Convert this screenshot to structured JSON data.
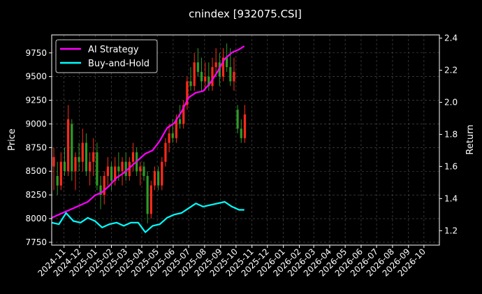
{
  "chart_data": {
    "type": "line",
    "title": "cnindex [932075.CSI]",
    "xlabel": "",
    "ylabel": "Price",
    "ylabel_right": "Return",
    "x_ticks": [
      "2024-11",
      "2024-12",
      "2025-01",
      "2025-02",
      "2025-03",
      "2025-04",
      "2025-05",
      "2025-06",
      "2025-07",
      "2025-08",
      "2025-09",
      "2025-10",
      "2025-11",
      "2025-12",
      "2026-01",
      "2026-02",
      "2026-03",
      "2026-04",
      "2026-05",
      "2026-06",
      "2026-07",
      "2026-08",
      "2026-09",
      "2026-10"
    ],
    "x_range": [
      "2024-10-08",
      "2026-10-31"
    ],
    "y_left": {
      "range": [
        7720,
        9940
      ],
      "ticks": [
        7750,
        8000,
        8250,
        8500,
        8750,
        9000,
        9250,
        9500,
        9750
      ]
    },
    "y_right": {
      "range": [
        1.11,
        2.42
      ],
      "ticks": [
        1.2,
        1.4,
        1.6,
        1.8,
        2.0,
        2.2,
        2.4
      ]
    },
    "grid": true,
    "legend_position": "top-left",
    "colors": {
      "up": "#ff2a1a",
      "down": "#2e9b26",
      "ai": "#ff00ff",
      "bh": "#00ffff"
    },
    "candles": {
      "description_note": "",
      "start_date": "2024-10-08",
      "series": [
        [
          "2024-10-08",
          8550,
          8750,
          8300,
          8650
        ],
        [
          "2024-10-15",
          8450,
          8600,
          8250,
          8350
        ],
        [
          "2024-10-22",
          8350,
          8700,
          8300,
          8600
        ],
        [
          "2024-10-29",
          8600,
          8750,
          8450,
          8500
        ],
        [
          "2024-11-05",
          8500,
          9200,
          8450,
          9050
        ],
        [
          "2024-11-12",
          9000,
          9050,
          8400,
          8500
        ],
        [
          "2024-11-19",
          8500,
          8700,
          8300,
          8650
        ],
        [
          "2024-11-26",
          8650,
          8800,
          8500,
          8600
        ],
        [
          "2024-12-03",
          8600,
          8950,
          8500,
          8800
        ],
        [
          "2024-12-10",
          8800,
          8900,
          8450,
          8500
        ],
        [
          "2024-12-17",
          8500,
          8700,
          8350,
          8600
        ],
        [
          "2024-12-24",
          8600,
          8850,
          8450,
          8700
        ],
        [
          "2024-12-31",
          8700,
          8800,
          8300,
          8350
        ],
        [
          "2025-01-07",
          8350,
          8450,
          8100,
          8250
        ],
        [
          "2025-01-14",
          8250,
          8500,
          8150,
          8450
        ],
        [
          "2025-01-21",
          8450,
          8650,
          8350,
          8550
        ],
        [
          "2025-01-28",
          8550,
          8600,
          8300,
          8400
        ],
        [
          "2025-02-04",
          8400,
          8650,
          8350,
          8550
        ],
        [
          "2025-02-11",
          8550,
          8700,
          8400,
          8500
        ],
        [
          "2025-02-18",
          8500,
          8650,
          8350,
          8600
        ],
        [
          "2025-02-25",
          8600,
          8700,
          8400,
          8450
        ],
        [
          "2025-03-04",
          8450,
          8650,
          8400,
          8600
        ],
        [
          "2025-03-11",
          8600,
          8800,
          8500,
          8700
        ],
        [
          "2025-03-18",
          8700,
          8750,
          8450,
          8500
        ],
        [
          "2025-03-25",
          8500,
          8600,
          8350,
          8550
        ],
        [
          "2025-04-01",
          8550,
          8600,
          8400,
          8450
        ],
        [
          "2025-04-08",
          8450,
          8500,
          7950,
          8050
        ],
        [
          "2025-04-15",
          8050,
          8400,
          8000,
          8350
        ],
        [
          "2025-04-22",
          8350,
          8550,
          8300,
          8500
        ],
        [
          "2025-04-29",
          8500,
          8550,
          8300,
          8350
        ],
        [
          "2025-05-06",
          8350,
          8650,
          8300,
          8600
        ],
        [
          "2025-05-13",
          8600,
          8850,
          8550,
          8800
        ],
        [
          "2025-05-20",
          8800,
          9000,
          8700,
          8900
        ],
        [
          "2025-05-27",
          8900,
          9050,
          8800,
          8850
        ],
        [
          "2025-06-03",
          8850,
          9100,
          8800,
          9050
        ],
        [
          "2025-06-10",
          9050,
          9200,
          8950,
          9000
        ],
        [
          "2025-06-17",
          9000,
          9250,
          8950,
          9200
        ],
        [
          "2025-06-24",
          9200,
          9500,
          9150,
          9450
        ],
        [
          "2025-07-01",
          9450,
          9600,
          9350,
          9400
        ],
        [
          "2025-07-08",
          9400,
          9750,
          9350,
          9650
        ],
        [
          "2025-07-15",
          9650,
          9800,
          9500,
          9550
        ],
        [
          "2025-07-22",
          9550,
          9700,
          9350,
          9450
        ],
        [
          "2025-07-29",
          9450,
          9650,
          9350,
          9500
        ],
        [
          "2025-08-05",
          9500,
          9650,
          9350,
          9400
        ],
        [
          "2025-08-12",
          9400,
          9700,
          9350,
          9600
        ],
        [
          "2025-08-19",
          9600,
          9800,
          9500,
          9650
        ],
        [
          "2025-08-26",
          9650,
          9750,
          9400,
          9500
        ],
        [
          "2025-09-02",
          9500,
          9800,
          9450,
          9700
        ],
        [
          "2025-09-09",
          9700,
          9850,
          9550,
          9600
        ],
        [
          "2025-09-16",
          9600,
          9800,
          9400,
          9450
        ],
        [
          "2025-09-23",
          9450,
          9700,
          9350,
          9550
        ],
        [
          "2025-09-30",
          9150,
          9200,
          8900,
          8950
        ],
        [
          "2025-10-07",
          8950,
          9050,
          8800,
          8850
        ],
        [
          "2025-10-14",
          8850,
          9200,
          8800,
          9100
        ]
      ]
    },
    "series": [
      {
        "name": "AI Strategy",
        "axis": "right",
        "points": [
          [
            "2024-10-08",
            1.28
          ],
          [
            "2024-10-22",
            1.3
          ],
          [
            "2024-11-05",
            1.32
          ],
          [
            "2024-11-19",
            1.34
          ],
          [
            "2024-12-03",
            1.36
          ],
          [
            "2024-12-17",
            1.38
          ],
          [
            "2024-12-31",
            1.42
          ],
          [
            "2025-01-14",
            1.44
          ],
          [
            "2025-01-28",
            1.48
          ],
          [
            "2025-02-11",
            1.53
          ],
          [
            "2025-02-25",
            1.56
          ],
          [
            "2025-03-11",
            1.6
          ],
          [
            "2025-03-25",
            1.64
          ],
          [
            "2025-04-08",
            1.68
          ],
          [
            "2025-04-22",
            1.7
          ],
          [
            "2025-05-06",
            1.76
          ],
          [
            "2025-05-20",
            1.84
          ],
          [
            "2025-06-03",
            1.87
          ],
          [
            "2025-06-17",
            1.94
          ],
          [
            "2025-07-01",
            2.03
          ],
          [
            "2025-07-15",
            2.06
          ],
          [
            "2025-07-29",
            2.07
          ],
          [
            "2025-08-12",
            2.12
          ],
          [
            "2025-08-26",
            2.19
          ],
          [
            "2025-09-09",
            2.27
          ],
          [
            "2025-09-23",
            2.31
          ],
          [
            "2025-10-07",
            2.33
          ],
          [
            "2025-10-17",
            2.35
          ]
        ]
      },
      {
        "name": "Buy-and-Hold",
        "axis": "right",
        "points": [
          [
            "2024-10-08",
            1.25
          ],
          [
            "2024-10-22",
            1.24
          ],
          [
            "2024-11-05",
            1.31
          ],
          [
            "2024-11-19",
            1.26
          ],
          [
            "2024-12-03",
            1.25
          ],
          [
            "2024-12-17",
            1.28
          ],
          [
            "2024-12-31",
            1.26
          ],
          [
            "2025-01-14",
            1.22
          ],
          [
            "2025-01-28",
            1.24
          ],
          [
            "2025-02-11",
            1.25
          ],
          [
            "2025-02-25",
            1.23
          ],
          [
            "2025-03-11",
            1.25
          ],
          [
            "2025-03-25",
            1.25
          ],
          [
            "2025-04-08",
            1.19
          ],
          [
            "2025-04-22",
            1.23
          ],
          [
            "2025-05-06",
            1.24
          ],
          [
            "2025-05-20",
            1.28
          ],
          [
            "2025-06-03",
            1.3
          ],
          [
            "2025-06-17",
            1.31
          ],
          [
            "2025-07-01",
            1.34
          ],
          [
            "2025-07-15",
            1.37
          ],
          [
            "2025-07-29",
            1.35
          ],
          [
            "2025-08-12",
            1.36
          ],
          [
            "2025-08-26",
            1.37
          ],
          [
            "2025-09-09",
            1.38
          ],
          [
            "2025-09-23",
            1.35
          ],
          [
            "2025-10-07",
            1.33
          ],
          [
            "2025-10-17",
            1.33
          ]
        ]
      }
    ]
  }
}
